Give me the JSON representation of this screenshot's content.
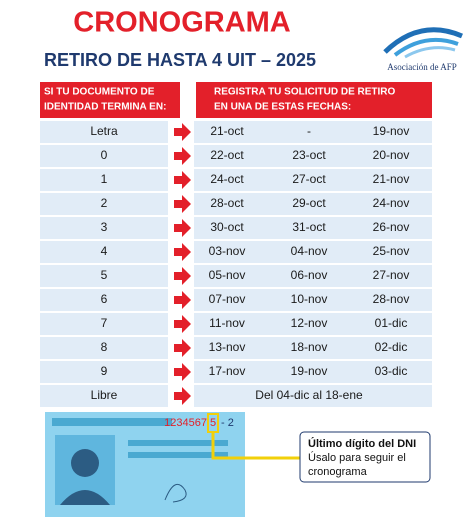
{
  "header": {
    "title": "CRONOGRAMA",
    "subtitle": "RETIRO DE HASTA 4 UIT – 2025",
    "logo": "Asociación de AFP"
  },
  "table": {
    "left_header": [
      "SI TU DOCUMENTO DE",
      "IDENTIDAD TERMINA EN:"
    ],
    "right_header": [
      "REGISTRA TU SOLICITUD DE RETIRO",
      "EN UNA DE ESTAS FECHAS:"
    ],
    "rows": [
      {
        "digit": "Letra",
        "dates": [
          "21-oct",
          "-",
          "19-nov"
        ]
      },
      {
        "digit": "0",
        "dates": [
          "22-oct",
          "23-oct",
          "20-nov"
        ]
      },
      {
        "digit": "1",
        "dates": [
          "24-oct",
          "27-oct",
          "21-nov"
        ]
      },
      {
        "digit": "2",
        "dates": [
          "28-oct",
          "29-oct",
          "24-nov"
        ]
      },
      {
        "digit": "3",
        "dates": [
          "30-oct",
          "31-oct",
          "26-nov"
        ]
      },
      {
        "digit": "4",
        "dates": [
          "03-nov",
          "04-nov",
          "25-nov"
        ]
      },
      {
        "digit": "5",
        "dates": [
          "05-nov",
          "06-nov",
          "27-nov"
        ]
      },
      {
        "digit": "6",
        "dates": [
          "07-nov",
          "10-nov",
          "28-nov"
        ]
      },
      {
        "digit": "7",
        "dates": [
          "11-nov",
          "12-nov",
          "01-dic"
        ]
      },
      {
        "digit": "8",
        "dates": [
          "13-nov",
          "18-nov",
          "02-dic"
        ]
      },
      {
        "digit": "9",
        "dates": [
          "17-nov",
          "19-nov",
          "03-dic"
        ]
      },
      {
        "digit": "Libre",
        "dates": [
          "Del 04-dic al 18-ene"
        ]
      }
    ]
  },
  "card": {
    "number": "1234567",
    "last_digit": "5",
    "check": "- 2"
  },
  "callout": {
    "title": "Último dígito del DNI",
    "lines": [
      "Úsalo para seguir el",
      "cronograma"
    ]
  }
}
